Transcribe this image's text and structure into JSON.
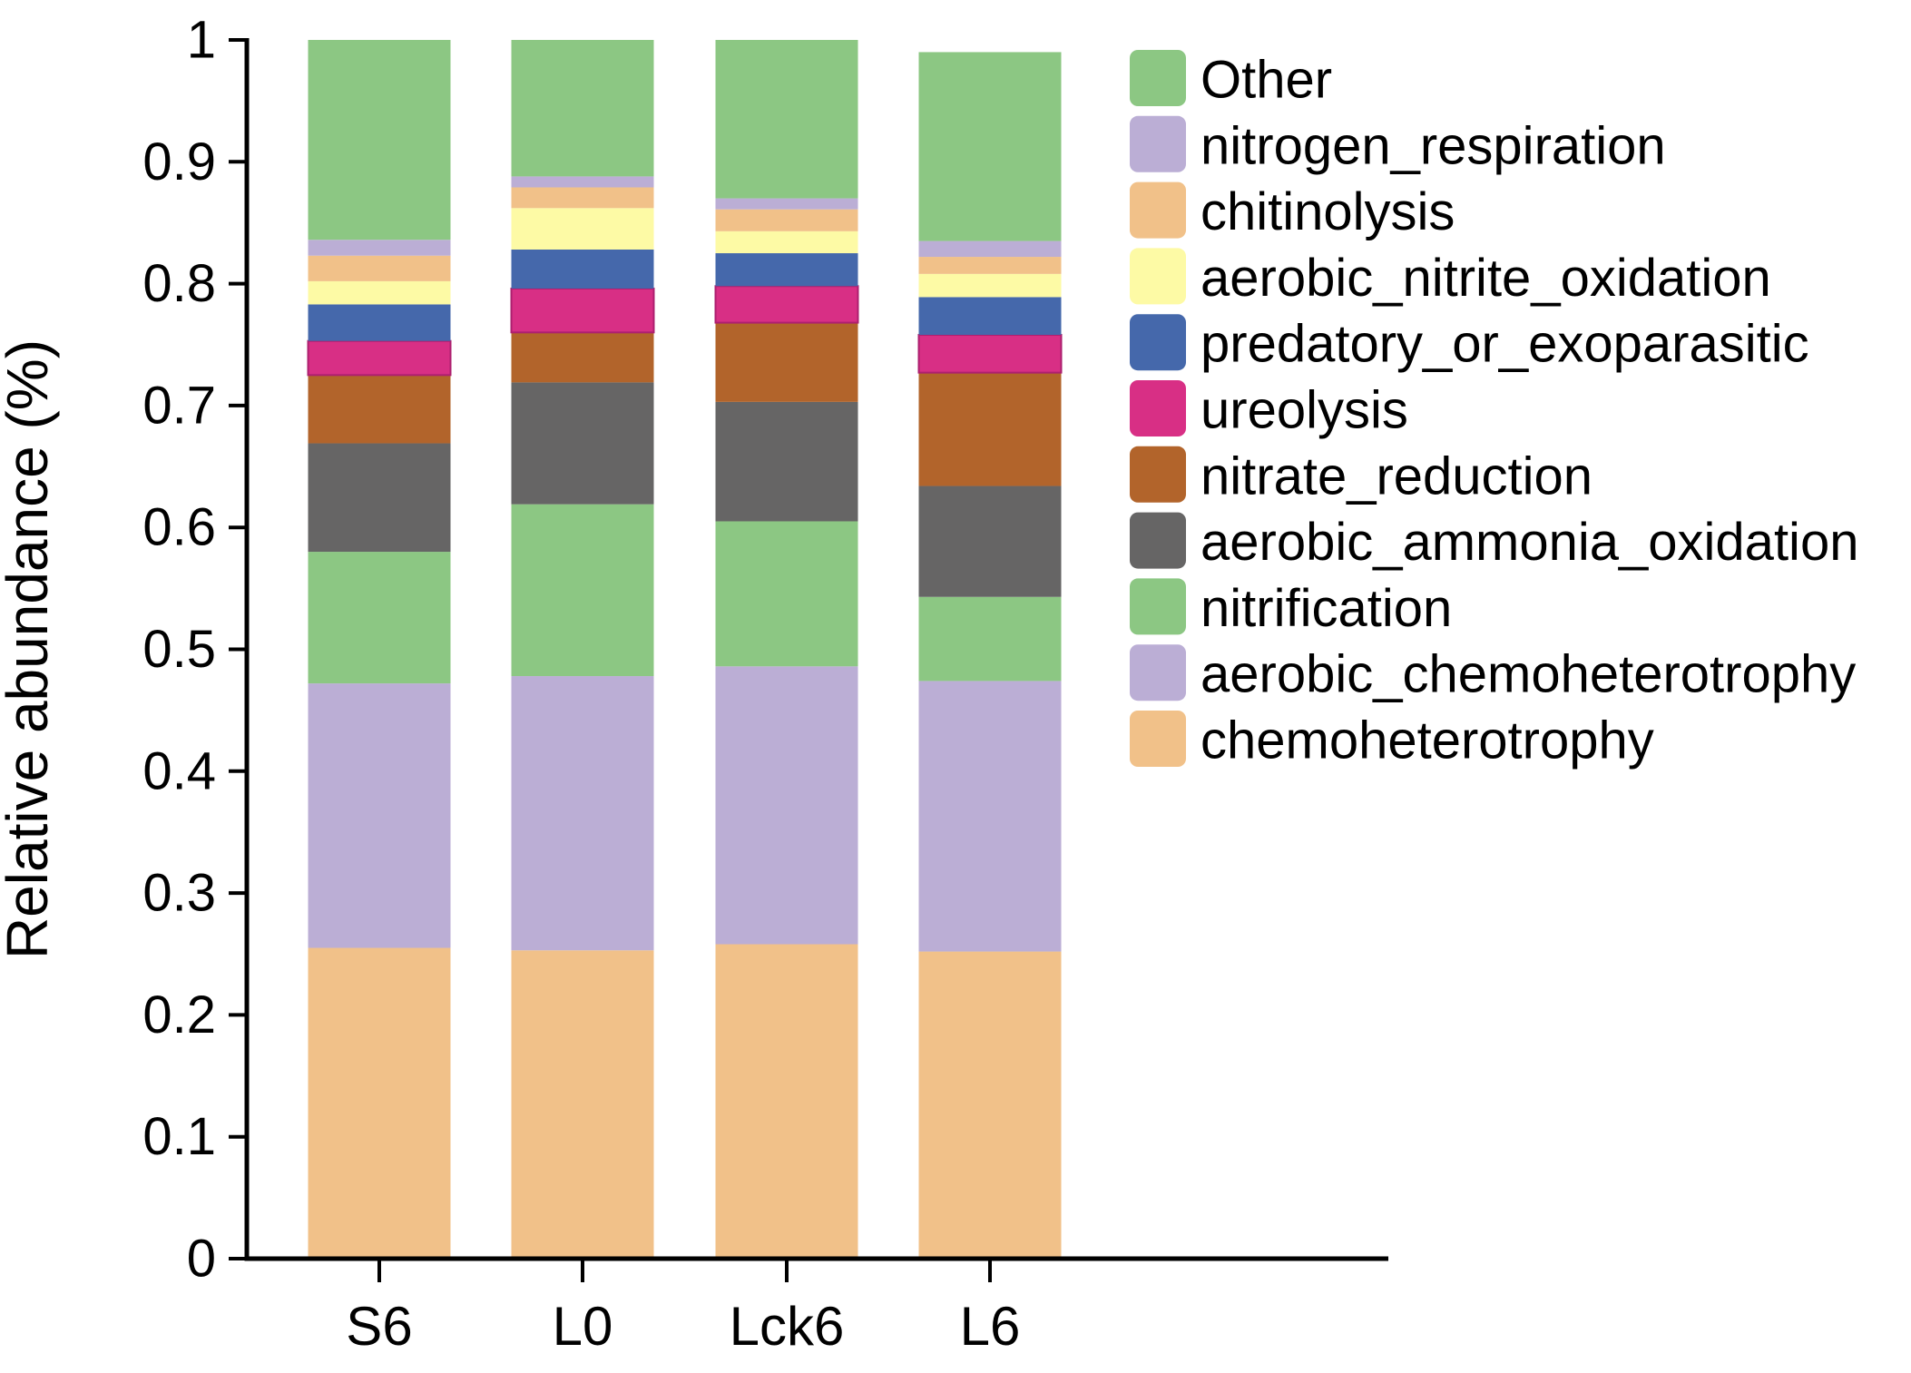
{
  "figure": {
    "ylabel": "Relative abundance (%)"
  },
  "chart_data": {
    "type": "bar",
    "stacked": true,
    "title": "",
    "xlabel": "",
    "ylabel": "Relative abundance (%)",
    "ylim": [
      0,
      1
    ],
    "grid": false,
    "legend_position": "right",
    "categories": [
      "S6",
      "L0",
      "Lck6",
      "L6"
    ],
    "bar_totals": [
      1.0,
      1.0,
      1.0,
      0.99
    ],
    "ytick_labels": [
      "0",
      "0.1",
      "0.2",
      "0.3",
      "0.4",
      "0.5",
      "0.6",
      "0.7",
      "0.8",
      "0.9",
      "1"
    ],
    "series": [
      {
        "name": "chemoheterotrophy",
        "color": "#F1C189",
        "values": [
          0.255,
          0.253,
          0.258,
          0.252
        ]
      },
      {
        "name": "aerobic_chemoheterotrophy",
        "color": "#BBAED5",
        "values": [
          0.217,
          0.225,
          0.228,
          0.222
        ]
      },
      {
        "name": "nitrification",
        "color": "#8CC783",
        "values": [
          0.108,
          0.141,
          0.119,
          0.069
        ]
      },
      {
        "name": "aerobic_ammonia_oxidation",
        "color": "#666565",
        "values": [
          0.089,
          0.1,
          0.098,
          0.091
        ]
      },
      {
        "name": "nitrate_reduction",
        "color": "#B2642B",
        "values": [
          0.056,
          0.041,
          0.065,
          0.093
        ]
      },
      {
        "name": "ureolysis",
        "color": "#D82F85",
        "stroke": "#AD1F6F",
        "values": [
          0.028,
          0.036,
          0.03,
          0.031
        ]
      },
      {
        "name": "predatory_or_exoparasitic",
        "color": "#4568AB",
        "values": [
          0.03,
          0.032,
          0.027,
          0.031
        ]
      },
      {
        "name": "aerobic_nitrite_oxidation",
        "color": "#FDFAA5",
        "values": [
          0.019,
          0.034,
          0.018,
          0.019
        ]
      },
      {
        "name": "chitinolysis",
        "color": "#F1C189",
        "values": [
          0.021,
          0.017,
          0.018,
          0.014
        ]
      },
      {
        "name": "nitrogen_respiration",
        "color": "#BBAED5",
        "values": [
          0.013,
          0.009,
          0.009,
          0.013
        ]
      },
      {
        "name": "Other",
        "color": "#8CC783",
        "values": [
          0.164,
          0.112,
          0.13,
          0.155
        ]
      }
    ],
    "legend_order_top_to_bottom": [
      "Other",
      "nitrogen_respiration",
      "chitinolysis",
      "aerobic_nitrite_oxidation",
      "predatory_or_exoparasitic",
      "ureolysis",
      "nitrate_reduction",
      "aerobic_ammonia_oxidation",
      "nitrification",
      "aerobic_chemoheterotrophy",
      "chemoheterotrophy"
    ]
  }
}
